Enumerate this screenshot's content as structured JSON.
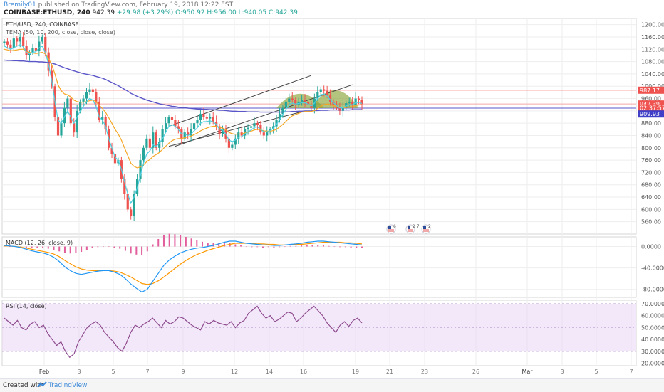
{
  "header": {
    "author": "Bremily01",
    "published_text": "published on TradingView.com, February 19, 2018 12:22 EST",
    "symbol": "COINBASE:ETHUSD, 240",
    "last": "942.39",
    "change": "+29.98",
    "change_pct": "(+3.29%)",
    "ohlc": {
      "o": "O:950.92",
      "h": "H:956.00",
      "l": "L:940.05",
      "c": "C:942.39"
    },
    "up_arrow": "▲"
  },
  "legend": {
    "pair": "ETH/USD, 240, COINBASE",
    "tema": "TEMA (50, 10, 200, close, close, close)",
    "macd": "MACD (12, 26, close, 9)",
    "rsi": "RSI (14, close)"
  },
  "footer": {
    "created_with": "Created with",
    "brand": "TradingView"
  },
  "colors": {
    "up": "#26a69a",
    "down": "#ef5350",
    "ema_fast": "#4dd0e1",
    "ema_mid": "#f5a623",
    "ema_slow": "#5a55c8",
    "macd": "#2196f3",
    "signal": "#ff9800",
    "hist": "#e25e9c",
    "rsi": "#8e4b8e",
    "rsi_band": "#e9d5f5",
    "resistance": "#ef5350",
    "support": "#5a55c8",
    "cup": "#8aa43a"
  },
  "chart_data": [
    {
      "type": "candlestick",
      "title": "ETH/USD, 240, COINBASE",
      "ylim": [
        520,
        1220
      ],
      "y_ticks": [
        "1200.00",
        "1160.00",
        "1120.00",
        "1080.00",
        "1040.00",
        "1000.00",
        "960.00",
        "920.00",
        "880.00",
        "840.00",
        "800.00",
        "760.00",
        "720.00",
        "680.00",
        "640.00",
        "600.00",
        "560.00"
      ],
      "x_ticks": [
        "Feb",
        "3",
        "5",
        "7",
        "9",
        "12",
        "14",
        "16",
        "19",
        "21",
        "23",
        "26",
        "Mar",
        "3",
        "5",
        "7"
      ],
      "price_labels": [
        {
          "text": "987.17",
          "value": 987.17,
          "color": "#ef5350"
        },
        {
          "text": "942.39",
          "value": 942.39,
          "color": "#ef5350"
        },
        {
          "text": "02:37:57",
          "value": 930,
          "color": "#ef5350"
        },
        {
          "text": "909.93",
          "value": 909.93,
          "color": "#3f3fc8"
        }
      ],
      "horizontal_lines": [
        {
          "value": 987.17,
          "color": "#ef5350"
        },
        {
          "value": 942.39,
          "color": "#f4a6a6"
        },
        {
          "value": 929,
          "color": "#5a55c8"
        }
      ],
      "closes": [
        1145,
        1135,
        1125,
        1155,
        1145,
        1160,
        1130,
        1100,
        1110,
        1125,
        1115,
        1145,
        1160,
        1110,
        1050,
        1000,
        900,
        840,
        880,
        930,
        960,
        880,
        850,
        920,
        950,
        960,
        980,
        990,
        980,
        950,
        890,
        900,
        860,
        800,
        780,
        750,
        760,
        700,
        650,
        600,
        580,
        650,
        700,
        760,
        800,
        830,
        800,
        850,
        800,
        820,
        860,
        880,
        900,
        890,
        870,
        860,
        830,
        850,
        840,
        860,
        880,
        890,
        910,
        900,
        895,
        900,
        885,
        870,
        845,
        860,
        830,
        800,
        810,
        830,
        850,
        840,
        860,
        865,
        870,
        880,
        875,
        850,
        840,
        850,
        860,
        870,
        890,
        910,
        930,
        950,
        960,
        955,
        940,
        950,
        955,
        950,
        940,
        930,
        960,
        980,
        990,
        985,
        970,
        950,
        940,
        930,
        920,
        930,
        945,
        950,
        940,
        960,
        955,
        942
      ],
      "tema_fast": [
        1130,
        1125,
        1120,
        1125,
        1130,
        1135,
        1128,
        1110,
        1105,
        1110,
        1112,
        1125,
        1130,
        1110,
        1070,
        1020,
        950,
        890,
        880,
        900,
        920,
        900,
        880,
        900,
        920,
        935,
        950,
        960,
        955,
        935,
        900,
        890,
        870,
        830,
        800,
        770,
        760,
        730,
        690,
        650,
        620,
        640,
        670,
        710,
        750,
        780,
        790,
        810,
        805,
        815,
        830,
        850,
        870,
        875,
        870,
        860,
        845,
        845,
        840,
        845,
        855,
        865,
        880,
        885,
        885,
        888,
        884,
        876,
        860,
        858,
        845,
        825,
        820,
        825,
        835,
        836,
        845,
        852,
        858,
        866,
        868,
        860,
        852,
        852,
        856,
        864,
        876,
        892,
        908,
        925,
        940,
        945,
        942,
        944,
        947,
        946,
        942,
        936,
        945,
        960,
        972,
        975,
        968,
        956,
        946,
        937,
        930,
        930,
        936,
        941,
        940,
        946,
        948,
        944
      ],
      "tema_mid": [
        1120,
        1118,
        1115,
        1116,
        1118,
        1120,
        1120,
        1115,
        1110,
        1108,
        1106,
        1108,
        1110,
        1105,
        1090,
        1070,
        1040,
        1005,
        985,
        975,
        972,
        965,
        955,
        950,
        948,
        948,
        950,
        953,
        955,
        950,
        938,
        928,
        915,
        898,
        880,
        860,
        845,
        825,
        800,
        775,
        750,
        740,
        735,
        738,
        745,
        755,
        762,
        772,
        778,
        785,
        795,
        805,
        815,
        823,
        828,
        830,
        830,
        833,
        835,
        838,
        843,
        848,
        855,
        860,
        864,
        868,
        870,
        870,
        866,
        864,
        858,
        850,
        846,
        844,
        845,
        845,
        848,
        851,
        854,
        858,
        860,
        858,
        855,
        854,
        854,
        856,
        860,
        868,
        876,
        886,
        896,
        904,
        908,
        912,
        916,
        918,
        918,
        918,
        921,
        928,
        935,
        940,
        942,
        940,
        937,
        934,
        931,
        930,
        931,
        933,
        934,
        937,
        939,
        940
      ],
      "tema_slow": [
        1085,
        1084,
        1084,
        1083,
        1083,
        1082,
        1082,
        1081,
        1080,
        1080,
        1080,
        1079,
        1079,
        1078,
        1077,
        1075,
        1072,
        1068,
        1064,
        1060,
        1057,
        1053,
        1050,
        1047,
        1044,
        1041,
        1039,
        1037,
        1035,
        1032,
        1029,
        1026,
        1022,
        1017,
        1012,
        1007,
        1002,
        996,
        990,
        984,
        977,
        972,
        967,
        963,
        959,
        955,
        952,
        949,
        946,
        943,
        941,
        939,
        937,
        935,
        934,
        932,
        931,
        930,
        929,
        928,
        927,
        926,
        926,
        925,
        925,
        924,
        924,
        923,
        922,
        922,
        921,
        920,
        919,
        919,
        918,
        918,
        918,
        917,
        917,
        917,
        917,
        916,
        916,
        916,
        916,
        916,
        916,
        916,
        916,
        917,
        917,
        918,
        918,
        919,
        919,
        920,
        920,
        920,
        921,
        921,
        922,
        922,
        922,
        923,
        923,
        923,
        923,
        923,
        923,
        923,
        924,
        924,
        924,
        924
      ],
      "trendlines": [
        {
          "from": [
            52,
            870
          ],
          "to": [
            97,
            1035
          ]
        },
        {
          "from": [
            54,
            805
          ],
          "to": [
            110,
            1005
          ]
        },
        {
          "from": [
            52,
            805
          ],
          "to": [
            95,
            920
          ]
        }
      ],
      "event_badges": [
        "6",
        "2 7",
        "2"
      ]
    },
    {
      "type": "line",
      "title": "MACD (12, 26, close, 9)",
      "ylim": [
        -95,
        18
      ],
      "y_ticks": [
        "0.0000",
        "-40.0000",
        "-80.0000"
      ],
      "series": [
        {
          "values": [
            2,
            1,
            0,
            -2,
            -5,
            -8,
            -10,
            -12,
            -15,
            -20,
            -28,
            -38,
            -45,
            -50,
            -52,
            -50,
            -48,
            -46,
            -45,
            -45,
            -48,
            -52,
            -60,
            -70,
            -78,
            -85,
            -80,
            -65,
            -50,
            -35,
            -25,
            -18,
            -12,
            -8,
            -5,
            -3,
            -2,
            0,
            2,
            5,
            8,
            10,
            10,
            8,
            6,
            5,
            4,
            3,
            3,
            2,
            2,
            3,
            4,
            5,
            6,
            8,
            9,
            10,
            10,
            9,
            8,
            7,
            6,
            5,
            4,
            3
          ]
        },
        {
          "values": [
            1,
            1,
            0,
            -1,
            -3,
            -5,
            -7,
            -9,
            -11,
            -14,
            -19,
            -26,
            -32,
            -38,
            -42,
            -44,
            -45,
            -45,
            -45,
            -45,
            -46,
            -48,
            -52,
            -57,
            -63,
            -69,
            -71,
            -69,
            -64,
            -57,
            -49,
            -41,
            -33,
            -26,
            -20,
            -15,
            -11,
            -7,
            -4,
            -1,
            2,
            4,
            6,
            6,
            6,
            6,
            5,
            5,
            4,
            4,
            3,
            3,
            3,
            4,
            4,
            5,
            6,
            7,
            8,
            8,
            8,
            8,
            7,
            7,
            6,
            5
          ]
        },
        {
          "values": [
            1,
            0,
            0,
            -1,
            -2,
            -3,
            -3,
            -3,
            -4,
            -6,
            -9,
            -12,
            -13,
            -12,
            -10,
            -6,
            -3,
            -1,
            0,
            0,
            -2,
            -4,
            -8,
            -13,
            -15,
            -16,
            -9,
            4,
            14,
            22,
            24,
            23,
            21,
            18,
            15,
            12,
            9,
            7,
            6,
            6,
            6,
            6,
            4,
            2,
            0,
            -1,
            -1,
            -2,
            -1,
            -2,
            -1,
            0,
            1,
            1,
            2,
            3,
            3,
            3,
            2,
            1,
            0,
            -1,
            -1,
            -2,
            -2,
            -2
          ]
        }
      ]
    },
    {
      "type": "line",
      "title": "RSI (14, close)",
      "ylim": [
        18,
        73
      ],
      "y_ticks": [
        "70.0000",
        "60.0000",
        "50.0000",
        "40.0000",
        "30.0000",
        "20.0000"
      ],
      "band": [
        30,
        70
      ],
      "values": [
        58,
        55,
        52,
        56,
        50,
        48,
        53,
        55,
        50,
        52,
        45,
        40,
        35,
        38,
        30,
        25,
        28,
        38,
        44,
        50,
        53,
        55,
        52,
        46,
        42,
        38,
        33,
        30,
        37,
        46,
        52,
        50,
        53,
        55,
        58,
        54,
        50,
        56,
        53,
        55,
        59,
        58,
        55,
        52,
        50,
        48,
        55,
        53,
        56,
        54,
        53,
        52,
        55,
        50,
        54,
        56,
        62,
        65,
        68,
        62,
        58,
        60,
        55,
        57,
        60,
        63,
        62,
        55,
        58,
        62,
        65,
        68,
        64,
        60,
        54,
        50,
        46,
        52,
        55,
        51,
        56,
        58,
        54
      ]
    }
  ]
}
